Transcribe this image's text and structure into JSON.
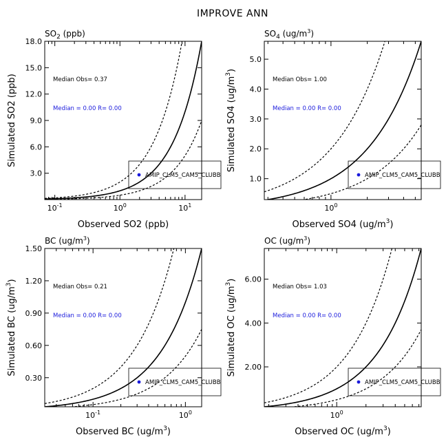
{
  "figure_title": "IMPROVE ANN",
  "chart_data": [
    {
      "type": "scatter",
      "panel_title": "SO2 (ppb)",
      "title_main": "SO",
      "title_sub": "2",
      "title_rest": " (ppb)",
      "xlabel": "Observed SO2 (ppb)",
      "xlabel_main": "Observed SO2 (ppb)",
      "xlabel_sup": "",
      "xlabel_tail": "",
      "ylabel": "Simulated SO2 (ppb)",
      "ylabel_main": "Simulated SO2 (ppb)",
      "ylabel_sup": "",
      "ylabel_tail": "",
      "xscale": "log",
      "yscale": "linear",
      "xlim": [
        0.07,
        18
      ],
      "ylim": [
        0,
        18
      ],
      "xticks": [
        {
          "value": 0.1,
          "mant": "10",
          "exp": "-1"
        },
        {
          "value": 1,
          "mant": "10",
          "exp": "0"
        },
        {
          "value": 10,
          "mant": "10",
          "exp": "1"
        }
      ],
      "yticks": [
        {
          "value": 3,
          "label": "3.0"
        },
        {
          "value": 6,
          "label": "6.0"
        },
        {
          "value": 9,
          "label": "9.0"
        },
        {
          "value": 12,
          "label": "12.0"
        },
        {
          "value": 15,
          "label": "15.0"
        },
        {
          "value": 18,
          "label": "18.0"
        }
      ],
      "lines": {
        "one_to_one": 1,
        "upper_factor": 2,
        "lower_factor": 0.5
      },
      "median_obs_text": "Median Obs= 0.37",
      "median_sim_text": "Median = 0.00 R= 0.00",
      "legend": {
        "label": "AMIP_CLM5_CAM5_CLUBB",
        "color": "#1a1adc",
        "placement": "lower-right"
      },
      "points": []
    },
    {
      "type": "scatter",
      "panel_title": "SO4 (ug/m3)",
      "title_main": "SO",
      "title_sub": "4",
      "title_rest": " (ug/m",
      "title_sup": "3",
      "title_tail": ")",
      "xlabel": "Observed SO4 (ug/m3)",
      "xlabel_main": "Observed SO4 (ug/m",
      "xlabel_sup": "3",
      "xlabel_tail": ")",
      "ylabel": "Simulated SO4 (ug/m3)",
      "ylabel_main": "Simulated SO4 (ug/m",
      "ylabel_sup": "3",
      "ylabel_tail": ")",
      "xscale": "log",
      "yscale": "linear",
      "xlim": [
        0.28,
        5.6
      ],
      "ylim": [
        0.3,
        5.6
      ],
      "xticks": [
        {
          "value": 1,
          "mant": "10",
          "exp": "0"
        }
      ],
      "yticks": [
        {
          "value": 1,
          "label": "1.0"
        },
        {
          "value": 2,
          "label": "2.0"
        },
        {
          "value": 3,
          "label": "3.0"
        },
        {
          "value": 4,
          "label": "4.0"
        },
        {
          "value": 5,
          "label": "5.0"
        }
      ],
      "lines": {
        "one_to_one": 1,
        "upper_factor": 2,
        "lower_factor": 0.5
      },
      "median_obs_text": "Median Obs= 1.00",
      "median_sim_text": "Median = 0.00 R= 0.00",
      "legend": {
        "label": "AMIP_CLM5_CAM5_CLUBB",
        "color": "#1a1adc",
        "placement": "lower-right"
      },
      "points": []
    },
    {
      "type": "scatter",
      "panel_title": "BC (ug/m3)",
      "title_main": "BC",
      "title_sub": "",
      "title_rest": " (ug/m",
      "title_sup": "3",
      "title_tail": ")",
      "xlabel": "Observed BC (ug/m3)",
      "xlabel_main": "Observed BC (ug/m",
      "xlabel_sup": "3",
      "xlabel_tail": ")",
      "ylabel": "Simulated BC (ug/m3)",
      "ylabel_main": "Simulated BC (ug/m",
      "ylabel_sup": "3",
      "ylabel_tail": ")",
      "xscale": "log",
      "yscale": "linear",
      "xlim": [
        0.03,
        1.5
      ],
      "ylim": [
        0.03,
        1.5
      ],
      "xticks": [
        {
          "value": 0.1,
          "mant": "10",
          "exp": "-1"
        },
        {
          "value": 1,
          "mant": "10",
          "exp": "0"
        }
      ],
      "yticks": [
        {
          "value": 0.3,
          "label": "0.30"
        },
        {
          "value": 0.6,
          "label": "0.60"
        },
        {
          "value": 0.9,
          "label": "0.90"
        },
        {
          "value": 1.2,
          "label": "1.20"
        },
        {
          "value": 1.5,
          "label": "1.50"
        }
      ],
      "lines": {
        "one_to_one": 1,
        "upper_factor": 2,
        "lower_factor": 0.5
      },
      "median_obs_text": "Median Obs= 0.21",
      "median_sim_text": "Median = 0.00 R= 0.00",
      "legend": {
        "label": "AMIP_CLM5_CAM5_CLUBB",
        "color": "#1a1adc",
        "placement": "lower-right"
      },
      "points": []
    },
    {
      "type": "scatter",
      "panel_title": "OC (ug/m3)",
      "title_main": "OC",
      "title_sub": "",
      "title_rest": " (ug/m",
      "title_sup": "3",
      "title_tail": ")",
      "xlabel": "Observed OC (ug/m3)",
      "xlabel_main": "Observed OC (ug/m",
      "xlabel_sup": "3",
      "xlabel_tail": ")",
      "ylabel": "Simulated OC (ug/m3)",
      "ylabel_main": "Simulated OC (ug/m",
      "ylabel_sup": "3",
      "ylabel_tail": ")",
      "xscale": "log",
      "yscale": "linear",
      "xlim": [
        0.18,
        7.4
      ],
      "ylim": [
        0.18,
        7.4
      ],
      "xticks": [
        {
          "value": 1,
          "mant": "10",
          "exp": "0"
        }
      ],
      "yticks": [
        {
          "value": 2,
          "label": "2.00"
        },
        {
          "value": 4,
          "label": "4.00"
        },
        {
          "value": 6,
          "label": "6.00"
        }
      ],
      "lines": {
        "one_to_one": 1,
        "upper_factor": 2,
        "lower_factor": 0.5
      },
      "median_obs_text": "Median Obs= 1.03",
      "median_sim_text": "Median = 0.00 R= 0.00",
      "legend": {
        "label": "AMIP_CLM5_CAM5_CLUBB",
        "color": "#1a1adc",
        "placement": "lower-right"
      },
      "points": []
    }
  ]
}
